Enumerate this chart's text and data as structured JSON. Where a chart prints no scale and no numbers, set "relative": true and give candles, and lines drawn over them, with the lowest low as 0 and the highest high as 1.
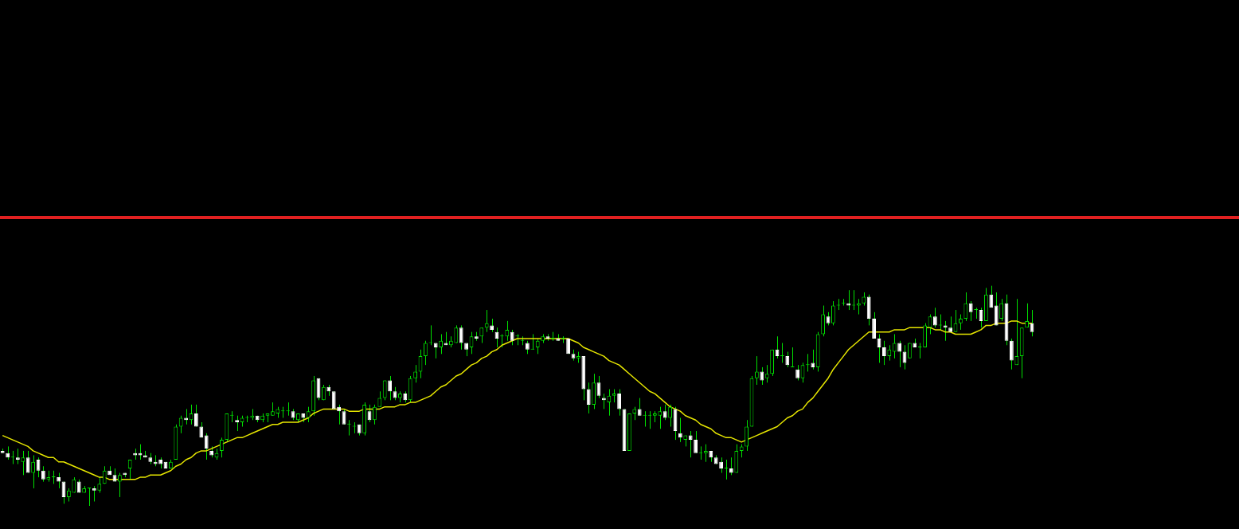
{
  "chart_data": {
    "type": "candlestick",
    "relative": true,
    "legend": false,
    "color": "#00e000",
    "colors": [
      "#ffffff",
      "#ffffff",
      "#00e000",
      "#ffffff",
      "#00e000",
      "#ffffff",
      "#00e000",
      "#ffffff",
      "#ffffff",
      "#00e000",
      "#00e000",
      "#ffffff",
      "#ffffff",
      "#00e000",
      "#00e000",
      "#ffffff",
      "#00e000",
      "#00e000",
      "#ffffff",
      "#00e000",
      "#00e000",
      "#ffffff",
      "#ffffff",
      "#00e000",
      "#ffffff",
      "#00e000",
      "#ffffff",
      "#ffffff",
      "#ffffff",
      "#ffffff",
      "#ffffff",
      "#ffffff",
      "#ffffff",
      "#00e000",
      "#00e000",
      "#00e000",
      "#ffffff",
      "#00e000",
      "#ffffff",
      "#ffffff",
      "#ffffff",
      "#ffffff",
      "#00e000",
      "#00e000",
      "#00e000",
      "#00e000",
      "#ffffff",
      "#00e000",
      "#00e000",
      "#00e000",
      "#ffffff",
      "#00e000",
      "#00e000",
      "#00e000",
      "#00e000",
      "#00e000",
      "#00e000",
      "#ffffff",
      "#00e000",
      "#ffffff",
      "#00e000",
      "#00e000",
      "#ffffff",
      "#00e000",
      "#ffffff",
      "#ffffff",
      "#ffffff",
      "#ffffff",
      "#00e000",
      "#00e000",
      "#ffffff",
      "#00e000",
      "#ffffff",
      "#00e000",
      "#00e000",
      "#00e000",
      "#ffffff",
      "#ffffff",
      "#00e000",
      "#ffffff",
      "#00e000",
      "#00e000",
      "#00e000",
      "#00e000",
      "#00e000",
      "#ffffff",
      "#00e000",
      "#ffffff",
      "#00e000",
      "#00e000",
      "#ffffff",
      "#ffffff",
      "#00e000",
      "#ffffff",
      "#00e000",
      "#00e000",
      "#ffffff",
      "#ffffff",
      "#00e000",
      "#00e000",
      "#ffffff",
      "#00e000",
      "#00e000",
      "#ffffff",
      "#00e000",
      "#00e000",
      "#00e000",
      "#ffffff",
      "#00e000",
      "#ffffff",
      "#00e000",
      "#ffffff",
      "#ffffff",
      "#00e000",
      "#ffffff",
      "#ffffff",
      "#00e000",
      "#ffffff",
      "#ffffff",
      "#00e000",
      "#00e000",
      "#ffffff",
      "#ffffff",
      "#00e000",
      "#00e000",
      "#ffffff",
      "#00e000",
      "#00e000",
      "#00e000",
      "#00e000",
      "#ffffff",
      "#00e000",
      "#ffffff",
      "#ffffff",
      "#00e000",
      "#ffffff",
      "#ffffff",
      "#00e000",
      "#00e000",
      "#ffffff",
      "#ffffff",
      "#ffffff",
      "#00e000",
      "#ffffff",
      "#00e000",
      "#00e000",
      "#00e000",
      "#00e000",
      "#00e000",
      "#ffffff",
      "#00e000",
      "#00e000",
      "#ffffff",
      "#00e000",
      "#ffffff",
      "#00e000",
      "#ffffff",
      "#00e000",
      "#00e000",
      "#ffffff",
      "#00e000",
      "#00e000",
      "#ffffff",
      "#00e000",
      "#00e000",
      "#00e000",
      "#ffffff",
      "#00e000",
      "#00e000",
      "#00e000",
      "#ffffff",
      "#ffffff",
      "#ffffff",
      "#ffffff",
      "#00e000",
      "#00e000",
      "#ffffff",
      "#ffffff",
      "#00e000",
      "#ffffff",
      "#00e000",
      "#00e000",
      "#00e000",
      "#ffffff",
      "#00e000",
      "#ffffff",
      "#ffffff",
      "#00e000",
      "#00e000",
      "#00e000",
      "#ffffff",
      "#00e000",
      "#ffffff",
      "#00e000",
      "#ffffff",
      "#ffffff",
      "#00e000",
      "#ffffff",
      "#ffffff",
      "#00e000",
      "#00e000",
      "#00e000",
      "#ffffff"
    ],
    "categories": [
      null,
      null,
      null,
      null,
      null,
      null,
      null,
      null,
      null,
      null,
      null,
      null,
      null,
      null,
      null,
      null,
      null,
      null,
      null,
      null,
      null,
      null,
      null,
      null,
      null,
      null,
      null,
      null,
      null,
      null,
      null,
      null,
      null,
      null,
      null,
      null,
      null,
      null,
      null,
      null,
      null,
      null,
      null,
      null,
      null,
      null,
      null,
      null,
      null,
      null,
      null,
      null,
      null,
      null,
      null,
      null,
      null,
      null,
      null,
      null,
      null,
      null,
      null,
      null,
      null,
      null,
      null,
      null,
      null,
      null,
      null,
      null,
      null,
      null,
      null,
      null,
      null,
      null,
      null,
      null,
      null,
      null,
      null,
      null,
      null,
      null,
      null,
      null,
      null,
      null,
      null,
      null,
      null,
      null,
      null,
      null,
      null,
      null,
      null,
      null,
      null,
      null,
      null,
      null,
      null,
      null,
      null,
      null,
      null,
      null,
      null,
      null,
      null,
      null,
      null,
      null,
      null,
      null,
      null,
      null,
      null,
      null,
      null,
      null,
      null,
      null,
      null,
      null,
      null,
      null,
      null,
      null,
      null,
      null,
      null,
      null,
      null,
      null,
      null,
      null,
      null,
      null,
      null,
      null,
      null,
      null,
      null,
      null,
      null,
      null,
      null,
      null,
      null,
      null,
      null,
      null,
      null,
      null,
      null,
      null,
      null,
      null,
      null,
      null,
      null,
      null,
      null,
      null,
      null,
      null,
      null,
      null,
      null,
      null,
      null,
      null,
      null,
      null,
      null,
      null,
      null,
      null,
      null,
      null,
      null,
      null,
      null,
      null,
      null,
      null,
      null,
      null,
      null,
      null,
      null,
      null,
      null,
      null,
      null,
      null,
      null,
      null,
      null
    ],
    "ohlc": [
      [
        0.25,
        0.26,
        0.24,
        0.24
      ],
      [
        0.24,
        0.27,
        0.21,
        0.22
      ],
      [
        0.22,
        0.25,
        0.19,
        0.22
      ],
      [
        0.22,
        0.26,
        0.19,
        0.21
      ],
      [
        0.2,
        0.25,
        0.14,
        0.22
      ],
      [
        0.22,
        0.25,
        0.15,
        0.15
      ],
      [
        0.15,
        0.23,
        0.08,
        0.2
      ],
      [
        0.21,
        0.22,
        0.13,
        0.16
      ],
      [
        0.16,
        0.18,
        0.11,
        0.12
      ],
      [
        0.12,
        0.16,
        0.11,
        0.13
      ],
      [
        0.13,
        0.16,
        0.1,
        0.13
      ],
      [
        0.13,
        0.15,
        0.08,
        0.11
      ],
      [
        0.11,
        0.11,
        0.01,
        0.04
      ],
      [
        0.04,
        0.08,
        0.02,
        0.07
      ],
      [
        0.06,
        0.13,
        0.06,
        0.12
      ],
      [
        0.11,
        0.12,
        0.06,
        0.06
      ],
      [
        0.06,
        0.09,
        0.06,
        0.08
      ],
      [
        0.08,
        0.08,
        0,
        0.08
      ],
      [
        0.08,
        0.09,
        0.02,
        0.07
      ],
      [
        0.07,
        0.13,
        0.06,
        0.1
      ],
      [
        0.1,
        0.18,
        0.1,
        0.16
      ],
      [
        0.16,
        0.18,
        0.14,
        0.14
      ],
      [
        0.14,
        0.17,
        0.11,
        0.11
      ],
      [
        0.11,
        0.15,
        0.04,
        0.14
      ],
      [
        0.15,
        0.15,
        0.13,
        0.14
      ],
      [
        0.17,
        0.21,
        0.12,
        0.21
      ],
      [
        0.24,
        0.26,
        0.21,
        0.23
      ],
      [
        0.24,
        0.28,
        0.21,
        0.23
      ],
      [
        0.23,
        0.25,
        0.22,
        0.22
      ],
      [
        0.22,
        0.24,
        0.19,
        0.2
      ],
      [
        0.2,
        0.23,
        0.18,
        0.19
      ],
      [
        0.21,
        0.22,
        0.17,
        0.19
      ],
      [
        0.2,
        0.2,
        0.17,
        0.17
      ],
      [
        0.17,
        0.21,
        0.17,
        0.2
      ],
      [
        0.21,
        0.37,
        0.21,
        0.36
      ],
      [
        0.36,
        0.41,
        0.33,
        0.4
      ],
      [
        0.4,
        0.44,
        0.37,
        0.39
      ],
      [
        0.39,
        0.46,
        0.37,
        0.42
      ],
      [
        0.42,
        0.46,
        0.36,
        0.36
      ],
      [
        0.36,
        0.38,
        0.31,
        0.31
      ],
      [
        0.32,
        0.33,
        0.21,
        0.26
      ],
      [
        0.25,
        0.27,
        0.22,
        0.23
      ],
      [
        0.22,
        0.26,
        0.21,
        0.24
      ],
      [
        0.25,
        0.31,
        0.22,
        0.3
      ],
      [
        0.3,
        0.42,
        0.29,
        0.42
      ],
      [
        0.41,
        0.43,
        0.38,
        0.41
      ],
      [
        0.39,
        0.41,
        0.34,
        0.38
      ],
      [
        0.38,
        0.41,
        0.36,
        0.4
      ],
      [
        0.4,
        0.41,
        0.38,
        0.4
      ],
      [
        0.4,
        0.44,
        0.39,
        0.41
      ],
      [
        0.41,
        0.41,
        0.38,
        0.39
      ],
      [
        0.39,
        0.42,
        0.38,
        0.41
      ],
      [
        0.41,
        0.42,
        0.38,
        0.42
      ],
      [
        0.41,
        0.47,
        0.41,
        0.43
      ],
      [
        0.42,
        0.45,
        0.4,
        0.44
      ],
      [
        0.43,
        0.45,
        0.4,
        0.43
      ],
      [
        0.43,
        0.47,
        0.41,
        0.43
      ],
      [
        0.43,
        0.44,
        0.39,
        0.4
      ],
      [
        0.39,
        0.42,
        0.38,
        0.42
      ],
      [
        0.42,
        0.42,
        0.38,
        0.4
      ],
      [
        0.4,
        0.45,
        0.38,
        0.43
      ],
      [
        0.43,
        0.59,
        0.41,
        0.57
      ],
      [
        0.58,
        0.58,
        0.48,
        0.49
      ],
      [
        0.48,
        0.55,
        0.48,
        0.54
      ],
      [
        0.54,
        0.55,
        0.5,
        0.52
      ],
      [
        0.52,
        0.52,
        0.44,
        0.44
      ],
      [
        0.45,
        0.46,
        0.37,
        0.43
      ],
      [
        0.43,
        0.44,
        0.37,
        0.37
      ],
      [
        0.37,
        0.39,
        0.32,
        0.37
      ],
      [
        0.36,
        0.38,
        0.33,
        0.36
      ],
      [
        0.37,
        0.37,
        0.32,
        0.33
      ],
      [
        0.33,
        0.47,
        0.32,
        0.46
      ],
      [
        0.43,
        0.46,
        0.38,
        0.39
      ],
      [
        0.39,
        0.46,
        0.37,
        0.45
      ],
      [
        0.45,
        0.52,
        0.45,
        0.49
      ],
      [
        0.49,
        0.57,
        0.48,
        0.57
      ],
      [
        0.57,
        0.59,
        0.48,
        0.52
      ],
      [
        0.52,
        0.54,
        0.48,
        0.49
      ],
      [
        0.49,
        0.52,
        0.47,
        0.51
      ],
      [
        0.51,
        0.52,
        0.47,
        0.48
      ],
      [
        0.48,
        0.59,
        0.47,
        0.58
      ],
      [
        0.58,
        0.64,
        0.56,
        0.61
      ],
      [
        0.61,
        0.71,
        0.58,
        0.68
      ],
      [
        0.68,
        0.75,
        0.64,
        0.74
      ],
      [
        0.74,
        0.82,
        0.73,
        0.74
      ],
      [
        0.74,
        0.74,
        0.67,
        0.72
      ],
      [
        0.72,
        0.78,
        0.69,
        0.75
      ],
      [
        0.74,
        0.79,
        0.73,
        0.73
      ],
      [
        0.73,
        0.77,
        0.72,
        0.75
      ],
      [
        0.74,
        0.82,
        0.74,
        0.81
      ],
      [
        0.81,
        0.82,
        0.71,
        0.74
      ],
      [
        0.74,
        0.74,
        0.68,
        0.71
      ],
      [
        0.72,
        0.79,
        0.69,
        0.77
      ],
      [
        0.77,
        0.79,
        0.75,
        0.76
      ],
      [
        0.77,
        0.81,
        0.74,
        0.81
      ],
      [
        0.81,
        0.89,
        0.79,
        0.83
      ],
      [
        0.82,
        0.85,
        0.79,
        0.8
      ],
      [
        0.79,
        0.81,
        0.72,
        0.76
      ],
      [
        0.77,
        0.78,
        0.72,
        0.77
      ],
      [
        0.77,
        0.84,
        0.75,
        0.8
      ],
      [
        0.79,
        0.8,
        0.73,
        0.75
      ],
      [
        0.77,
        0.78,
        0.73,
        0.77
      ],
      [
        0.75,
        0.77,
        0.73,
        0.75
      ],
      [
        0.74,
        0.75,
        0.69,
        0.71
      ],
      [
        0.71,
        0.78,
        0.71,
        0.71
      ],
      [
        0.72,
        0.76,
        0.69,
        0.75
      ],
      [
        0.75,
        0.78,
        0.74,
        0.77
      ],
      [
        0.77,
        0.78,
        0.75,
        0.76
      ],
      [
        0.76,
        0.79,
        0.75,
        0.76
      ],
      [
        0.76,
        0.78,
        0.75,
        0.75
      ],
      [
        0.76,
        0.77,
        0.74,
        0.76
      ],
      [
        0.76,
        0.76,
        0.69,
        0.69
      ],
      [
        0.69,
        0.71,
        0.66,
        0.67
      ],
      [
        0.67,
        0.7,
        0.65,
        0.68
      ],
      [
        0.68,
        0.68,
        0.48,
        0.53
      ],
      [
        0.53,
        0.56,
        0.42,
        0.46
      ],
      [
        0.46,
        0.6,
        0.44,
        0.56
      ],
      [
        0.56,
        0.59,
        0.49,
        0.5
      ],
      [
        0.49,
        0.51,
        0.44,
        0.48
      ],
      [
        0.47,
        0.53,
        0.41,
        0.5
      ],
      [
        0.5,
        0.53,
        0.47,
        0.51
      ],
      [
        0.51,
        0.53,
        0.41,
        0.44
      ],
      [
        0.44,
        0.44,
        0.25,
        0.25
      ],
      [
        0.25,
        0.42,
        0.25,
        0.42
      ],
      [
        0.42,
        0.45,
        0.39,
        0.44
      ],
      [
        0.44,
        0.49,
        0.41,
        0.41
      ],
      [
        0.41,
        0.43,
        0.36,
        0.41
      ],
      [
        0.41,
        0.43,
        0.35,
        0.41
      ],
      [
        0.41,
        0.43,
        0.38,
        0.42
      ],
      [
        0.41,
        0.45,
        0.35,
        0.43
      ],
      [
        0.43,
        0.46,
        0.39,
        0.4
      ],
      [
        0.4,
        0.46,
        0.36,
        0.45
      ],
      [
        0.44,
        0.45,
        0.3,
        0.34
      ],
      [
        0.33,
        0.4,
        0.29,
        0.31
      ],
      [
        0.3,
        0.32,
        0.27,
        0.32
      ],
      [
        0.32,
        0.34,
        0.22,
        0.3
      ],
      [
        0.3,
        0.34,
        0.24,
        0.24
      ],
      [
        0.24,
        0.27,
        0.21,
        0.24
      ],
      [
        0.24,
        0.28,
        0.2,
        0.25
      ],
      [
        0.25,
        0.25,
        0.2,
        0.22
      ],
      [
        0.22,
        0.23,
        0.19,
        0.19
      ],
      [
        0.2,
        0.22,
        0.15,
        0.17
      ],
      [
        0.17,
        0.21,
        0.12,
        0.17
      ],
      [
        0.17,
        0.22,
        0.14,
        0.15
      ],
      [
        0.15,
        0.28,
        0.15,
        0.25
      ],
      [
        0.25,
        0.28,
        0.22,
        0.27
      ],
      [
        0.27,
        0.39,
        0.25,
        0.36
      ],
      [
        0.36,
        0.59,
        0.36,
        0.58
      ],
      [
        0.58,
        0.68,
        0.55,
        0.61
      ],
      [
        0.61,
        0.63,
        0.55,
        0.57
      ],
      [
        0.58,
        0.64,
        0.56,
        0.6
      ],
      [
        0.6,
        0.71,
        0.59,
        0.71
      ],
      [
        0.71,
        0.77,
        0.67,
        0.68
      ],
      [
        0.68,
        0.74,
        0.65,
        0.68
      ],
      [
        0.68,
        0.7,
        0.63,
        0.64
      ],
      [
        0.63,
        0.72,
        0.63,
        0.63
      ],
      [
        0.62,
        0.64,
        0.57,
        0.58
      ],
      [
        0.58,
        0.65,
        0.56,
        0.64
      ],
      [
        0.64,
        0.69,
        0.61,
        0.64
      ],
      [
        0.65,
        0.71,
        0.62,
        0.63
      ],
      [
        0.63,
        0.79,
        0.61,
        0.78
      ],
      [
        0.78,
        0.91,
        0.77,
        0.87
      ],
      [
        0.86,
        0.88,
        0.82,
        0.83
      ],
      [
        0.83,
        0.93,
        0.82,
        0.91
      ],
      [
        0.91,
        0.94,
        0.89,
        0.91
      ],
      [
        0.92,
        0.94,
        0.91,
        0.92
      ],
      [
        0.92,
        0.98,
        0.89,
        0.91
      ],
      [
        0.91,
        0.98,
        0.89,
        0.91
      ],
      [
        0.91,
        0.94,
        0.87,
        0.92
      ],
      [
        0.92,
        0.97,
        0.91,
        0.95
      ],
      [
        0.95,
        0.96,
        0.82,
        0.85
      ],
      [
        0.85,
        0.88,
        0.76,
        0.76
      ],
      [
        0.76,
        0.78,
        0.65,
        0.72
      ],
      [
        0.72,
        0.75,
        0.64,
        0.68
      ],
      [
        0.68,
        0.73,
        0.66,
        0.71
      ],
      [
        0.7,
        0.78,
        0.67,
        0.74
      ],
      [
        0.74,
        0.75,
        0.63,
        0.7
      ],
      [
        0.7,
        0.73,
        0.62,
        0.65
      ],
      [
        0.67,
        0.74,
        0.67,
        0.74
      ],
      [
        0.74,
        0.76,
        0.72,
        0.72
      ],
      [
        0.72,
        0.74,
        0.67,
        0.72
      ],
      [
        0.72,
        0.83,
        0.72,
        0.82
      ],
      [
        0.81,
        0.87,
        0.78,
        0.86
      ],
      [
        0.86,
        0.9,
        0.81,
        0.82
      ],
      [
        0.82,
        0.87,
        0.8,
        0.82
      ],
      [
        0.82,
        0.84,
        0.75,
        0.81
      ],
      [
        0.81,
        0.86,
        0.79,
        0.79
      ],
      [
        0.79,
        0.89,
        0.79,
        0.83
      ],
      [
        0.83,
        0.87,
        0.8,
        0.85
      ],
      [
        0.85,
        0.97,
        0.84,
        0.92
      ],
      [
        0.92,
        0.93,
        0.84,
        0.88
      ],
      [
        0.89,
        0.9,
        0.85,
        0.89
      ],
      [
        0.89,
        0.9,
        0.81,
        0.84
      ],
      [
        0.84,
        0.99,
        0.84,
        0.96
      ],
      [
        0.96,
        1,
        0.9,
        0.9
      ],
      [
        0.91,
        0.97,
        0.82,
        0.82
      ],
      [
        0.85,
        0.94,
        0.84,
        0.92
      ],
      [
        0.92,
        0.96,
        0.73,
        0.75
      ],
      [
        0.75,
        0.76,
        0.62,
        0.66
      ],
      [
        0.64,
        0.94,
        0.64,
        0.68
      ],
      [
        0.68,
        0.81,
        0.58,
        0.81
      ],
      [
        0.81,
        0.92,
        0.81,
        0.84
      ],
      [
        0.83,
        0.89,
        0.77,
        0.79
      ]
    ],
    "series": [
      {
        "type": "line",
        "color": "#e6e600",
        "values": [
          0.32,
          0.31,
          0.3,
          0.29,
          0.28,
          0.27,
          0.25,
          0.24,
          0.23,
          0.22,
          0.22,
          0.2,
          0.2,
          0.19,
          0.18,
          0.17,
          0.16,
          0.15,
          0.14,
          0.13,
          0.13,
          0.12,
          0.12,
          0.12,
          0.12,
          0.12,
          0.12,
          0.13,
          0.13,
          0.14,
          0.14,
          0.14,
          0.15,
          0.16,
          0.18,
          0.19,
          0.21,
          0.22,
          0.24,
          0.25,
          0.25,
          0.26,
          0.27,
          0.28,
          0.29,
          0.3,
          0.31,
          0.31,
          0.32,
          0.33,
          0.34,
          0.35,
          0.36,
          0.37,
          0.37,
          0.38,
          0.38,
          0.38,
          0.38,
          0.39,
          0.4,
          0.42,
          0.43,
          0.44,
          0.44,
          0.44,
          0.44,
          0.44,
          0.43,
          0.43,
          0.43,
          0.44,
          0.44,
          0.44,
          0.44,
          0.45,
          0.45,
          0.45,
          0.46,
          0.46,
          0.47,
          0.47,
          0.48,
          0.49,
          0.5,
          0.52,
          0.54,
          0.55,
          0.57,
          0.59,
          0.6,
          0.62,
          0.64,
          0.65,
          0.67,
          0.68,
          0.7,
          0.71,
          0.73,
          0.74,
          0.75,
          0.76,
          0.76,
          0.76,
          0.76,
          0.76,
          0.76,
          0.76,
          0.76,
          0.76,
          0.76,
          0.76,
          0.75,
          0.74,
          0.72,
          0.71,
          0.7,
          0.69,
          0.68,
          0.66,
          0.65,
          0.64,
          0.62,
          0.6,
          0.58,
          0.56,
          0.54,
          0.52,
          0.51,
          0.49,
          0.47,
          0.45,
          0.44,
          0.43,
          0.41,
          0.4,
          0.39,
          0.37,
          0.36,
          0.35,
          0.33,
          0.32,
          0.31,
          0.31,
          0.3,
          0.29,
          0.3,
          0.31,
          0.32,
          0.33,
          0.34,
          0.35,
          0.36,
          0.38,
          0.4,
          0.41,
          0.43,
          0.44,
          0.47,
          0.49,
          0.52,
          0.55,
          0.58,
          0.62,
          0.65,
          0.68,
          0.71,
          0.73,
          0.75,
          0.77,
          0.79,
          0.79,
          0.79,
          0.79,
          0.79,
          0.8,
          0.8,
          0.8,
          0.81,
          0.81,
          0.81,
          0.81,
          0.81,
          0.8,
          0.8,
          0.79,
          0.79,
          0.78,
          0.78,
          0.78,
          0.78,
          0.79,
          0.8,
          0.82,
          0.82,
          0.83,
          0.83,
          0.83,
          0.84,
          0.84,
          0.83,
          0.83,
          0.83
        ]
      }
    ],
    "ref_lines": [
      {
        "axis": "y",
        "value": 1.31,
        "color": "#e02020"
      }
    ]
  }
}
